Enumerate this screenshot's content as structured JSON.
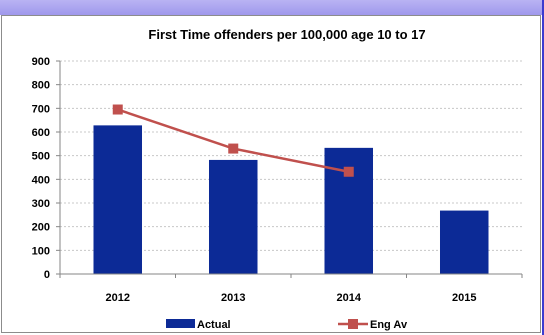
{
  "chart_data": {
    "type": "bar",
    "title": "First Time offenders per 100,000 age 10 to 17",
    "categories": [
      "2012",
      "2013",
      "2014",
      "2015"
    ],
    "ylim": [
      0,
      900
    ],
    "yticks": [
      0,
      100,
      200,
      300,
      400,
      500,
      600,
      700,
      800,
      900
    ],
    "grid": true,
    "legend_position": "bottom",
    "series": [
      {
        "name": "Actual",
        "type": "bar",
        "color": "#0c2a96",
        "values": [
          628,
          482,
          533,
          268
        ]
      },
      {
        "name": "Eng Av",
        "type": "line",
        "color": "#c0504d",
        "values": [
          695,
          530,
          432,
          null
        ]
      }
    ]
  }
}
